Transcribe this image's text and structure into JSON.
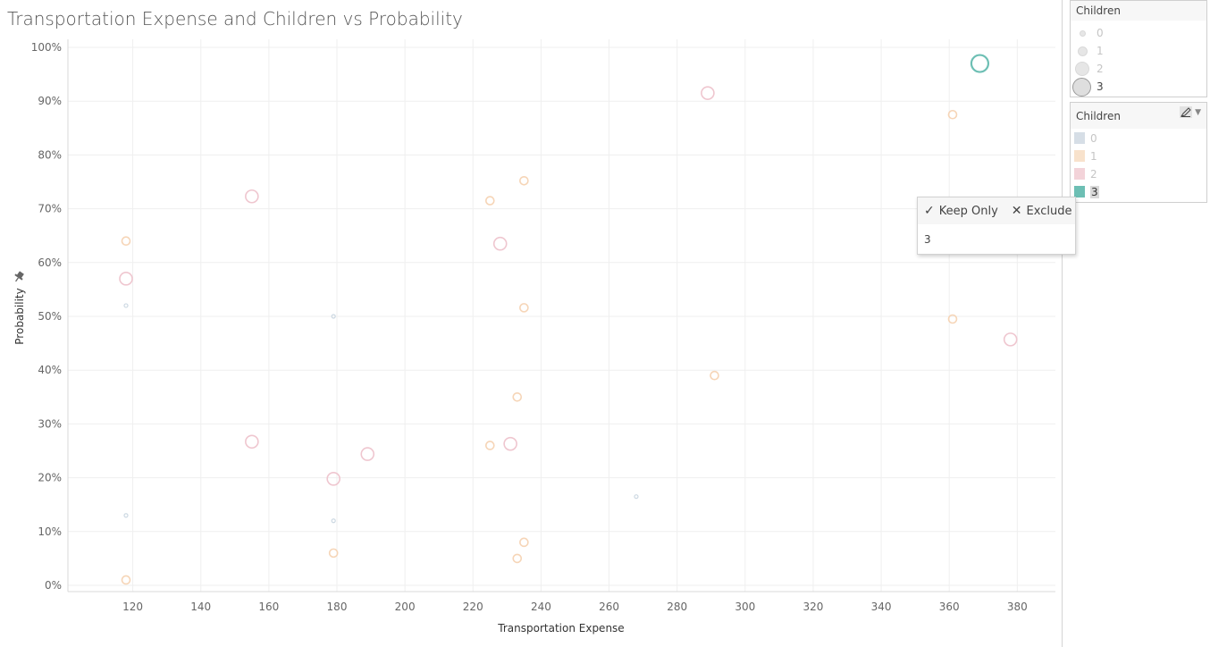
{
  "title": "Transportation Expense and Children vs Probability",
  "chart_data": {
    "type": "scatter",
    "xlabel": "Transportation Expense",
    "ylabel": "Probability",
    "xlim": [
      100,
      390
    ],
    "ylim": [
      0,
      1
    ],
    "x_ticks": [
      120,
      140,
      160,
      180,
      200,
      220,
      240,
      260,
      280,
      300,
      320,
      340,
      360,
      380
    ],
    "y_ticks": [
      "0%",
      "10%",
      "20%",
      "30%",
      "40%",
      "50%",
      "60%",
      "70%",
      "80%",
      "90%",
      "100%"
    ],
    "grid": true,
    "size_by": "Children",
    "color_by": "Children",
    "highlighted": "3",
    "colors": {
      "0": "#c9d6e0",
      "1": "#f5d3b3",
      "2": "#eec3cc",
      "3": "#6dbfb4"
    },
    "points": [
      {
        "x": 118,
        "y": 0.52,
        "children": 0
      },
      {
        "x": 118,
        "y": 0.13,
        "children": 0
      },
      {
        "x": 179,
        "y": 0.5,
        "children": 0
      },
      {
        "x": 179,
        "y": 0.12,
        "children": 0
      },
      {
        "x": 268,
        "y": 0.165,
        "children": 0
      },
      {
        "x": 118,
        "y": 0.64,
        "children": 1
      },
      {
        "x": 118,
        "y": 0.01,
        "children": 1
      },
      {
        "x": 179,
        "y": 0.06,
        "children": 1
      },
      {
        "x": 225,
        "y": 0.715,
        "children": 1
      },
      {
        "x": 235,
        "y": 0.752,
        "children": 1
      },
      {
        "x": 235,
        "y": 0.516,
        "children": 1
      },
      {
        "x": 233,
        "y": 0.35,
        "children": 1
      },
      {
        "x": 225,
        "y": 0.26,
        "children": 1
      },
      {
        "x": 235,
        "y": 0.08,
        "children": 1
      },
      {
        "x": 233,
        "y": 0.05,
        "children": 1
      },
      {
        "x": 291,
        "y": 0.39,
        "children": 1
      },
      {
        "x": 361,
        "y": 0.875,
        "children": 1
      },
      {
        "x": 361,
        "y": 0.495,
        "children": 1
      },
      {
        "x": 155,
        "y": 0.723,
        "children": 2
      },
      {
        "x": 118,
        "y": 0.57,
        "children": 2
      },
      {
        "x": 155,
        "y": 0.267,
        "children": 2
      },
      {
        "x": 179,
        "y": 0.198,
        "children": 2
      },
      {
        "x": 189,
        "y": 0.244,
        "children": 2
      },
      {
        "x": 228,
        "y": 0.635,
        "children": 2
      },
      {
        "x": 231,
        "y": 0.263,
        "children": 2
      },
      {
        "x": 289,
        "y": 0.915,
        "children": 2
      },
      {
        "x": 378,
        "y": 0.457,
        "children": 2
      },
      {
        "x": 369,
        "y": 0.97,
        "children": 3
      }
    ]
  },
  "size_legend": {
    "title": "Children",
    "items": [
      {
        "label": "0",
        "selected": false
      },
      {
        "label": "1",
        "selected": false
      },
      {
        "label": "2",
        "selected": false
      },
      {
        "label": "3",
        "selected": true
      }
    ]
  },
  "color_legend": {
    "title": "Children",
    "items": [
      {
        "label": "0",
        "color": "#d6dee6",
        "selected": false
      },
      {
        "label": "1",
        "color": "#f8e2cc",
        "selected": false
      },
      {
        "label": "2",
        "color": "#f3d3d9",
        "selected": false
      },
      {
        "label": "3",
        "color": "#6dbfb4",
        "selected": true
      }
    ]
  },
  "tooltip": {
    "keep_only": "Keep Only",
    "exclude": "Exclude",
    "value": "3"
  }
}
